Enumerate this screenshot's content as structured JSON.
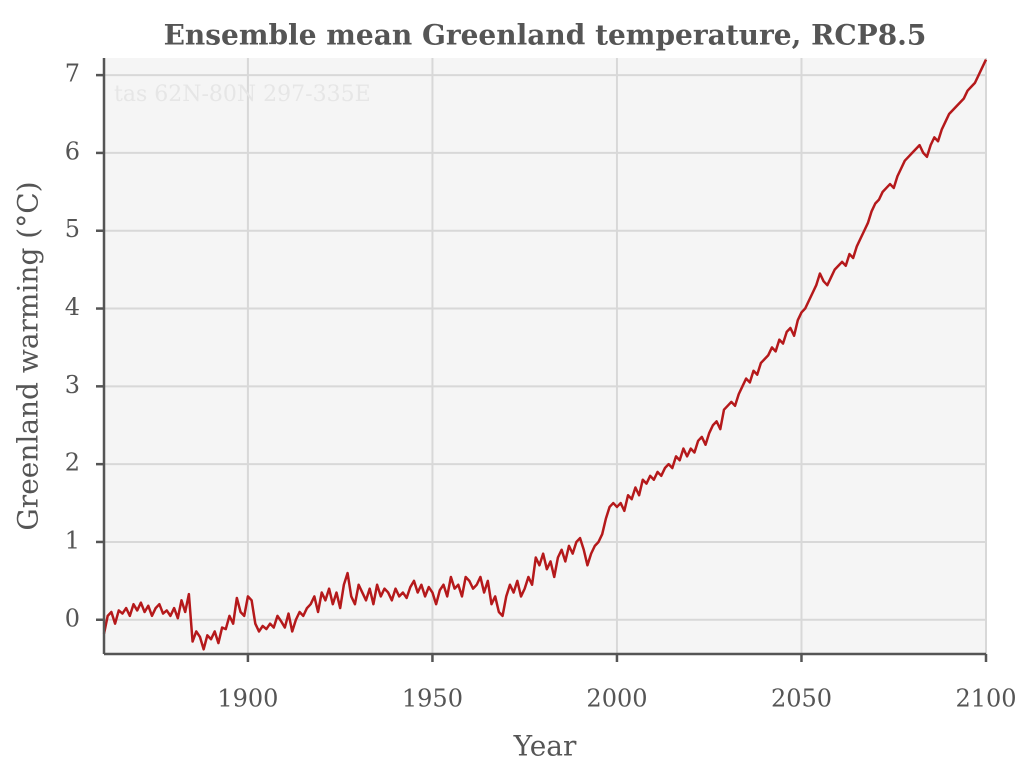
{
  "chart_data": {
    "type": "line",
    "title": "Ensemble mean Greenland temperature, RCP8.5",
    "annotation": "tas 62N-80N 297-335E",
    "xlabel": "Year",
    "ylabel": "Greenland warming (°C)",
    "xlim": [
      1861,
      2100
    ],
    "ylim": [
      -0.44,
      7.22
    ],
    "xticks": [
      1900,
      1950,
      2000,
      2050,
      2100
    ],
    "yticks": [
      0,
      1,
      2,
      3,
      4,
      5,
      6,
      7
    ],
    "grid": true,
    "x": [
      1861,
      1862,
      1863,
      1864,
      1865,
      1866,
      1867,
      1868,
      1869,
      1870,
      1871,
      1872,
      1873,
      1874,
      1875,
      1876,
      1877,
      1878,
      1879,
      1880,
      1881,
      1882,
      1883,
      1884,
      1885,
      1886,
      1887,
      1888,
      1889,
      1890,
      1891,
      1892,
      1893,
      1894,
      1895,
      1896,
      1897,
      1898,
      1899,
      1900,
      1901,
      1902,
      1903,
      1904,
      1905,
      1906,
      1907,
      1908,
      1909,
      1910,
      1911,
      1912,
      1913,
      1914,
      1915,
      1916,
      1917,
      1918,
      1919,
      1920,
      1921,
      1922,
      1923,
      1924,
      1925,
      1926,
      1927,
      1928,
      1929,
      1930,
      1931,
      1932,
      1933,
      1934,
      1935,
      1936,
      1937,
      1938,
      1939,
      1940,
      1941,
      1942,
      1943,
      1944,
      1945,
      1946,
      1947,
      1948,
      1949,
      1950,
      1951,
      1952,
      1953,
      1954,
      1955,
      1956,
      1957,
      1958,
      1959,
      1960,
      1961,
      1962,
      1963,
      1964,
      1965,
      1966,
      1967,
      1968,
      1969,
      1970,
      1971,
      1972,
      1973,
      1974,
      1975,
      1976,
      1977,
      1978,
      1979,
      1980,
      1981,
      1982,
      1983,
      1984,
      1985,
      1986,
      1987,
      1988,
      1989,
      1990,
      1991,
      1992,
      1993,
      1994,
      1995,
      1996,
      1997,
      1998,
      1999,
      2000,
      2001,
      2002,
      2003,
      2004,
      2005,
      2006,
      2007,
      2008,
      2009,
      2010,
      2011,
      2012,
      2013,
      2014,
      2015,
      2016,
      2017,
      2018,
      2019,
      2020,
      2021,
      2022,
      2023,
      2024,
      2025,
      2026,
      2027,
      2028,
      2029,
      2030,
      2031,
      2032,
      2033,
      2034,
      2035,
      2036,
      2037,
      2038,
      2039,
      2040,
      2041,
      2042,
      2043,
      2044,
      2045,
      2046,
      2047,
      2048,
      2049,
      2050,
      2051,
      2052,
      2053,
      2054,
      2055,
      2056,
      2057,
      2058,
      2059,
      2060,
      2061,
      2062,
      2063,
      2064,
      2065,
      2066,
      2067,
      2068,
      2069,
      2070,
      2071,
      2072,
      2073,
      2074,
      2075,
      2076,
      2077,
      2078,
      2079,
      2080,
      2081,
      2082,
      2083,
      2084,
      2085,
      2086,
      2087,
      2088,
      2089,
      2090,
      2091,
      2092,
      2093,
      2094,
      2095,
      2096,
      2097,
      2098,
      2099,
      2100
    ],
    "series": [
      {
        "color": "#b5191b",
        "values": [
          -0.18,
          0.05,
          0.1,
          -0.05,
          0.12,
          0.08,
          0.15,
          0.05,
          0.2,
          0.12,
          0.22,
          0.1,
          0.18,
          0.05,
          0.15,
          0.2,
          0.08,
          0.12,
          0.05,
          0.15,
          0.02,
          0.25,
          0.1,
          0.33,
          -0.28,
          -0.15,
          -0.22,
          -0.38,
          -0.2,
          -0.25,
          -0.15,
          -0.3,
          -0.1,
          -0.12,
          0.05,
          -0.05,
          0.28,
          0.1,
          0.05,
          0.3,
          0.25,
          -0.05,
          -0.15,
          -0.08,
          -0.12,
          -0.05,
          -0.1,
          0.05,
          -0.02,
          -0.1,
          0.08,
          -0.15,
          0.0,
          0.1,
          0.05,
          0.15,
          0.2,
          0.3,
          0.1,
          0.35,
          0.25,
          0.4,
          0.2,
          0.35,
          0.15,
          0.45,
          0.6,
          0.3,
          0.2,
          0.45,
          0.35,
          0.25,
          0.4,
          0.2,
          0.45,
          0.3,
          0.4,
          0.35,
          0.25,
          0.4,
          0.3,
          0.35,
          0.28,
          0.42,
          0.5,
          0.35,
          0.45,
          0.3,
          0.42,
          0.35,
          0.2,
          0.38,
          0.45,
          0.3,
          0.55,
          0.4,
          0.45,
          0.3,
          0.55,
          0.5,
          0.4,
          0.45,
          0.55,
          0.35,
          0.5,
          0.2,
          0.3,
          0.1,
          0.05,
          0.3,
          0.45,
          0.35,
          0.5,
          0.3,
          0.4,
          0.55,
          0.45,
          0.8,
          0.7,
          0.85,
          0.65,
          0.75,
          0.55,
          0.8,
          0.9,
          0.75,
          0.95,
          0.85,
          1.0,
          1.05,
          0.9,
          0.7,
          0.85,
          0.95,
          1.0,
          1.1,
          1.3,
          1.45,
          1.5,
          1.45,
          1.5,
          1.4,
          1.6,
          1.55,
          1.7,
          1.6,
          1.8,
          1.75,
          1.85,
          1.8,
          1.9,
          1.85,
          1.95,
          2.0,
          1.95,
          2.1,
          2.05,
          2.2,
          2.1,
          2.2,
          2.15,
          2.3,
          2.35,
          2.25,
          2.4,
          2.5,
          2.55,
          2.45,
          2.7,
          2.75,
          2.8,
          2.75,
          2.9,
          3.0,
          3.1,
          3.05,
          3.2,
          3.15,
          3.3,
          3.35,
          3.4,
          3.5,
          3.45,
          3.6,
          3.55,
          3.7,
          3.75,
          3.65,
          3.85,
          3.95,
          4.0,
          4.1,
          4.2,
          4.3,
          4.45,
          4.35,
          4.3,
          4.4,
          4.5,
          4.55,
          4.6,
          4.55,
          4.7,
          4.65,
          4.8,
          4.9,
          5.0,
          5.1,
          5.25,
          5.35,
          5.4,
          5.5,
          5.55,
          5.6,
          5.55,
          5.7,
          5.8,
          5.9,
          5.95,
          6.0,
          6.05,
          6.1,
          6.0,
          5.95,
          6.1,
          6.2,
          6.15,
          6.3,
          6.4,
          6.5,
          6.55,
          6.6,
          6.65,
          6.7,
          6.8,
          6.85,
          6.9,
          7.0,
          7.1,
          7.2
        ]
      }
    ]
  }
}
